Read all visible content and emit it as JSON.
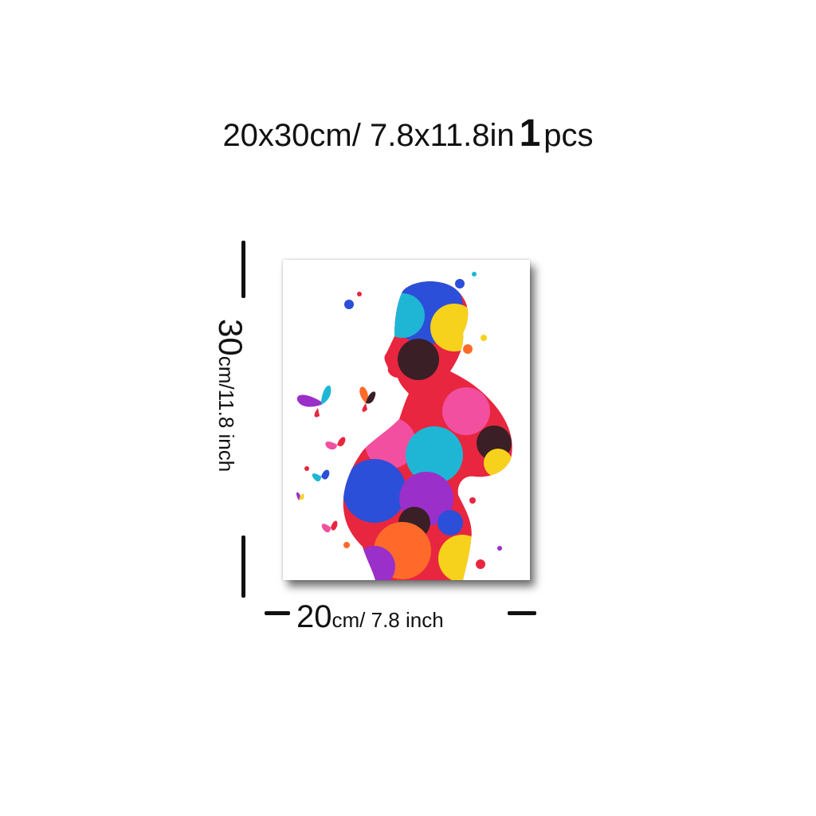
{
  "header": {
    "size": "20x30cm/ 7.8x11.8in",
    "quantity": "1",
    "quantity_unit": "pcs"
  },
  "dimensions": {
    "height_value": "30",
    "height_unit": "cm/11.8 inch",
    "width_value": "20",
    "width_unit": "cm/ 7.8 inch"
  },
  "artwork": {
    "subject": "watercolor pregnant woman silhouette with butterflies",
    "colors": [
      "#e8263f",
      "#2b4fd8",
      "#f7d21c",
      "#1fb6d6",
      "#9b2fc9",
      "#ff6a2a",
      "#3a1f26",
      "#f24fa0"
    ]
  }
}
